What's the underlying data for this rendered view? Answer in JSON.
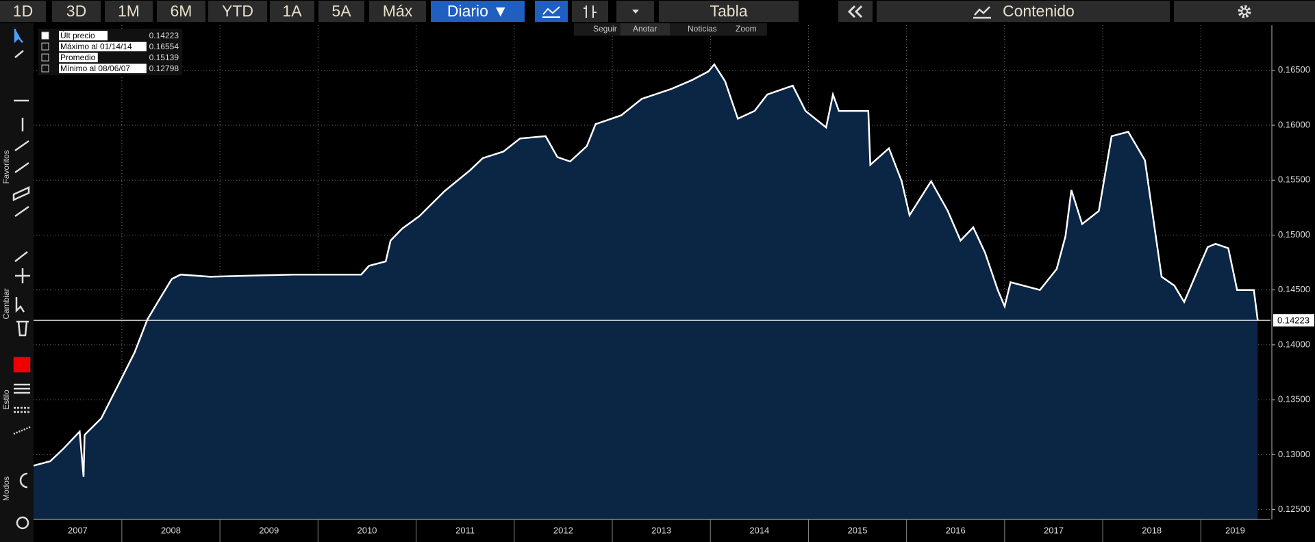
{
  "toolbar": {
    "periods": [
      "1D",
      "3D",
      "1M",
      "6M",
      "YTD",
      "1A",
      "5A",
      "Máx"
    ],
    "frequency": "Diario",
    "table": "Tabla",
    "content": "Contenido",
    "actions": [
      "Seguir",
      "Anotar",
      "Noticias",
      "Zoom"
    ],
    "side_labels": [
      "Favoritos",
      "Cambiar",
      "Estilo",
      "Modos"
    ]
  },
  "chart_data": {
    "type": "area",
    "x": [
      2007.1,
      2007.27,
      2007.4,
      2007.57,
      2007.61,
      2007.62,
      2007.79,
      2007.96,
      2008.13,
      2008.26,
      2008.38,
      2008.51,
      2008.6,
      2008.9,
      2009.32,
      2009.75,
      2010.18,
      2010.44,
      2010.52,
      2010.69,
      2010.74,
      2010.86,
      2011.03,
      2011.29,
      2011.55,
      2011.68,
      2011.89,
      2012.06,
      2012.32,
      2012.44,
      2012.57,
      2012.74,
      2012.83,
      2013.09,
      2013.3,
      2013.6,
      2013.81,
      2013.98,
      2014.04,
      2014.15,
      2014.28,
      2014.45,
      2014.58,
      2014.84,
      2014.97,
      2015.18,
      2015.25,
      2015.31,
      2015.61,
      2015.63,
      2015.82,
      2015.95,
      2016.03,
      2016.25,
      2016.42,
      2016.55,
      2016.68,
      2016.8,
      2016.93,
      2017.0,
      2017.06,
      2017.36,
      2017.53,
      2017.62,
      2017.68,
      2017.79,
      2017.96,
      2018.09,
      2018.26,
      2018.43,
      2018.6,
      2018.73,
      2018.83,
      2018.94,
      2019.07,
      2019.15,
      2019.28,
      2019.37,
      2019.54,
      2019.58
    ],
    "values": [
      0.129,
      0.1294,
      0.1305,
      0.1321,
      0.12798,
      0.1318,
      0.1333,
      0.1363,
      0.1393,
      0.1423,
      0.1441,
      0.146,
      0.1464,
      0.1462,
      0.1463,
      0.1464,
      0.1464,
      0.1464,
      0.1472,
      0.1476,
      0.1495,
      0.1506,
      0.1517,
      0.154,
      0.1559,
      0.157,
      0.1576,
      0.1588,
      0.159,
      0.1571,
      0.1567,
      0.1581,
      0.1601,
      0.1609,
      0.1624,
      0.1633,
      0.1641,
      0.1649,
      0.16554,
      0.164,
      0.1606,
      0.1613,
      0.1628,
      0.1636,
      0.1613,
      0.1598,
      0.1628,
      0.1613,
      0.1613,
      0.1564,
      0.1579,
      0.1549,
      0.1518,
      0.1549,
      0.1522,
      0.1495,
      0.1507,
      0.1484,
      0.145,
      0.1435,
      0.1457,
      0.145,
      0.1469,
      0.1499,
      0.1541,
      0.151,
      0.1522,
      0.159,
      0.1594,
      0.1568,
      0.1462,
      0.1454,
      0.1439,
      0.1462,
      0.1489,
      0.1492,
      0.1488,
      0.145,
      0.145,
      0.14223
    ],
    "color": "#ffffff",
    "fill_color": "#0b2545",
    "xlim": [
      2007.1,
      2019.71
    ],
    "ylim": [
      0.1241,
      0.1691
    ],
    "xticks": [
      {
        "value": 2007.55,
        "label": "2007"
      },
      {
        "value": 2008.5,
        "label": "2008"
      },
      {
        "value": 2009.5,
        "label": "2009"
      },
      {
        "value": 2010.5,
        "label": "2010"
      },
      {
        "value": 2011.5,
        "label": "2011"
      },
      {
        "value": 2012.5,
        "label": "2012"
      },
      {
        "value": 2013.5,
        "label": "2013"
      },
      {
        "value": 2014.5,
        "label": "2014"
      },
      {
        "value": 2015.5,
        "label": "2015"
      },
      {
        "value": 2016.5,
        "label": "2016"
      },
      {
        "value": 2017.5,
        "label": "2017"
      },
      {
        "value": 2018.5,
        "label": "2018"
      },
      {
        "value": 2019.35,
        "label": "2019"
      }
    ],
    "xgrid": [
      2008,
      2009,
      2010,
      2011,
      2012,
      2013,
      2014,
      2015,
      2016,
      2017,
      2018,
      2019
    ],
    "yticks": [
      {
        "value": 0.125,
        "label": "0.12500"
      },
      {
        "value": 0.13,
        "label": "0.13000"
      },
      {
        "value": 0.135,
        "label": "0.13500"
      },
      {
        "value": 0.14,
        "label": "0.14000"
      },
      {
        "value": 0.145,
        "label": "0.14500"
      },
      {
        "value": 0.15,
        "label": "0.15000"
      },
      {
        "value": 0.155,
        "label": "0.15500"
      },
      {
        "value": 0.16,
        "label": "0.16000"
      },
      {
        "value": 0.165,
        "label": "0.16500"
      }
    ],
    "grid": true,
    "stats": [
      {
        "name": "Últ precio",
        "value": 0.14223
      },
      {
        "name": "Máximo al 01/14/14",
        "value": 0.16554
      },
      {
        "name": "Promedio",
        "value": 0.15139
      },
      {
        "name": "Mínimo al 08/06/07",
        "value": 0.12798
      }
    ]
  }
}
